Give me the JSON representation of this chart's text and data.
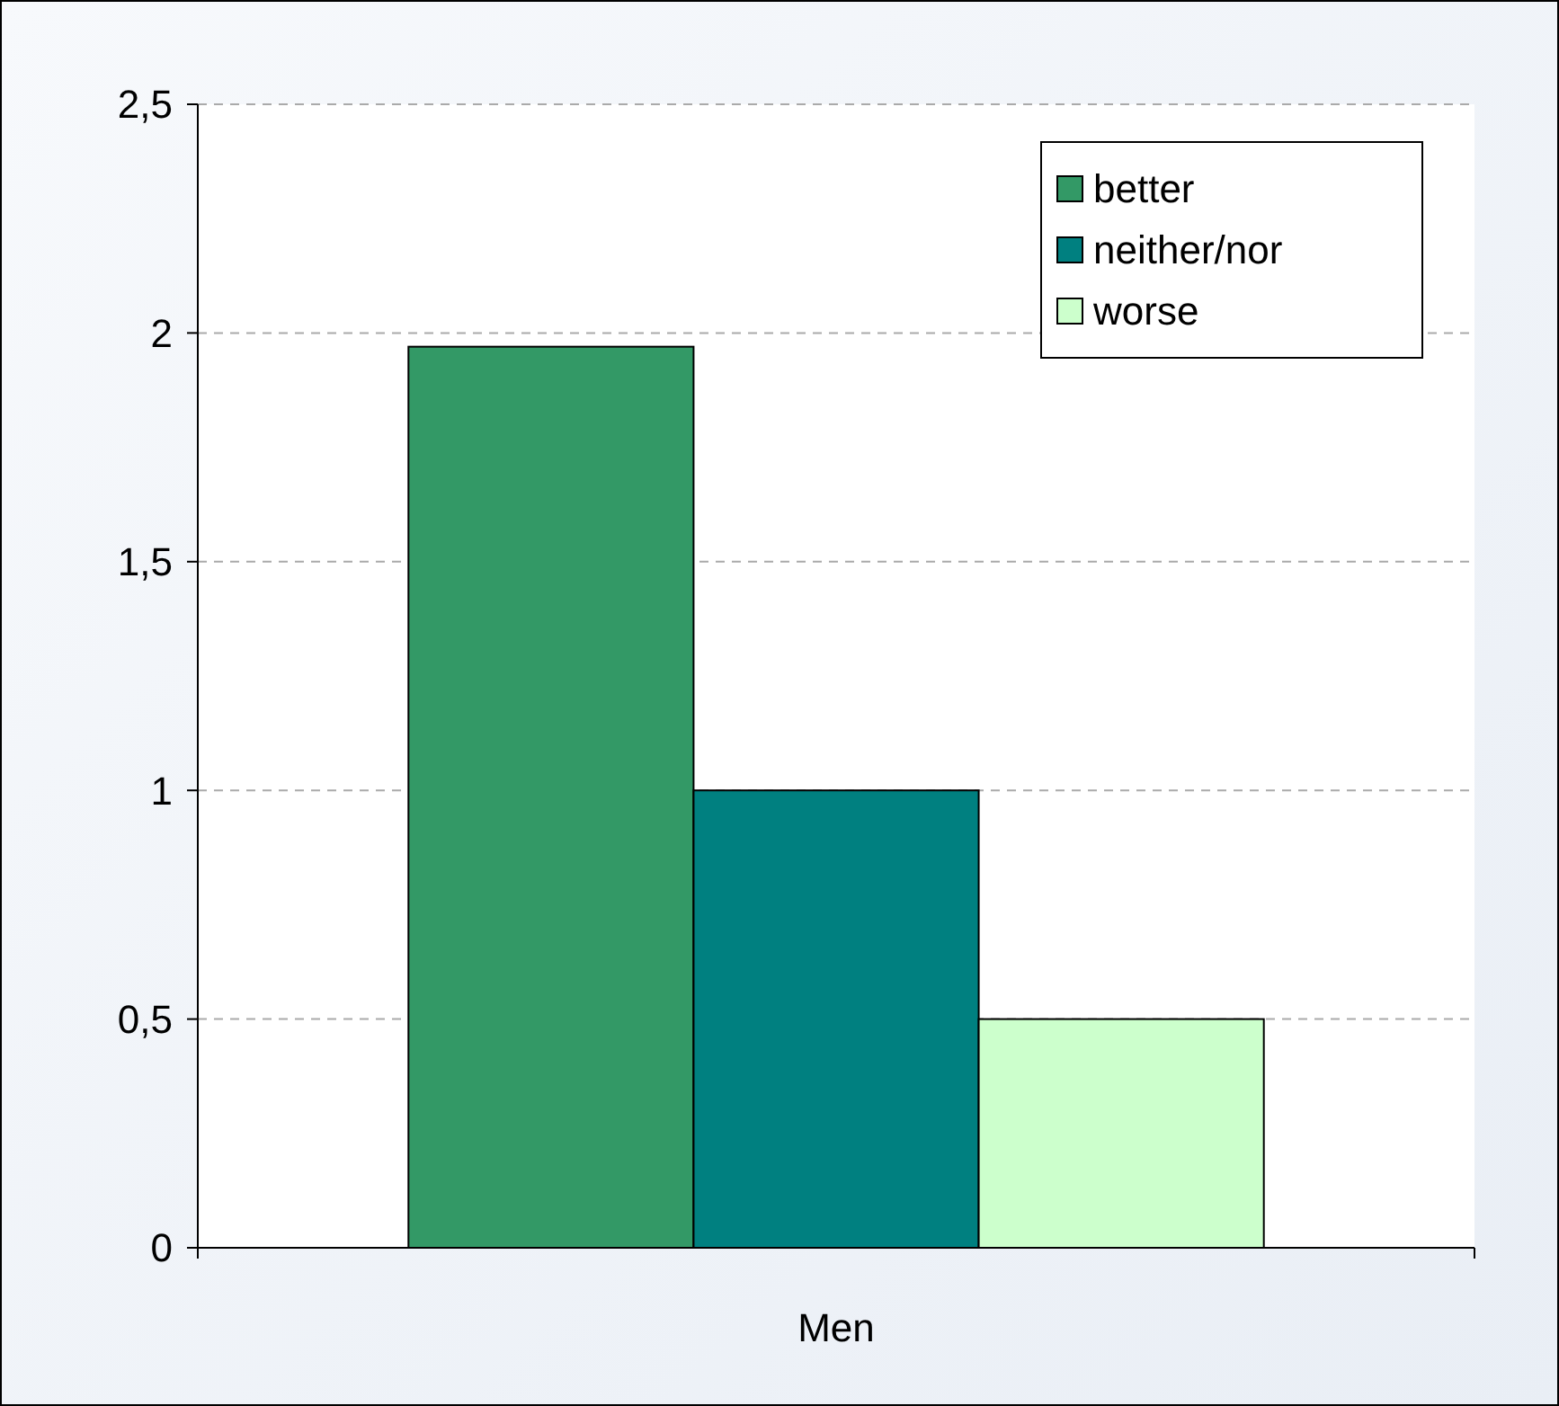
{
  "chart_data": {
    "type": "bar",
    "categories": [
      "Men"
    ],
    "series": [
      {
        "name": "better",
        "color": "#339966",
        "values": [
          1.97
        ]
      },
      {
        "name": "neither/nor",
        "color": "#008080",
        "values": [
          1.0
        ]
      },
      {
        "name": "worse",
        "color": "#ccffcc",
        "values": [
          0.5
        ]
      }
    ],
    "ylim": [
      0,
      2.5
    ],
    "yticks": [
      0,
      {
        "value": 0.5,
        "label": "0,5"
      },
      1,
      {
        "value": 1.5,
        "label": "1,5"
      },
      2,
      {
        "value": 2.5,
        "label": "2,5"
      }
    ],
    "grid": "y",
    "legend": "top right"
  }
}
